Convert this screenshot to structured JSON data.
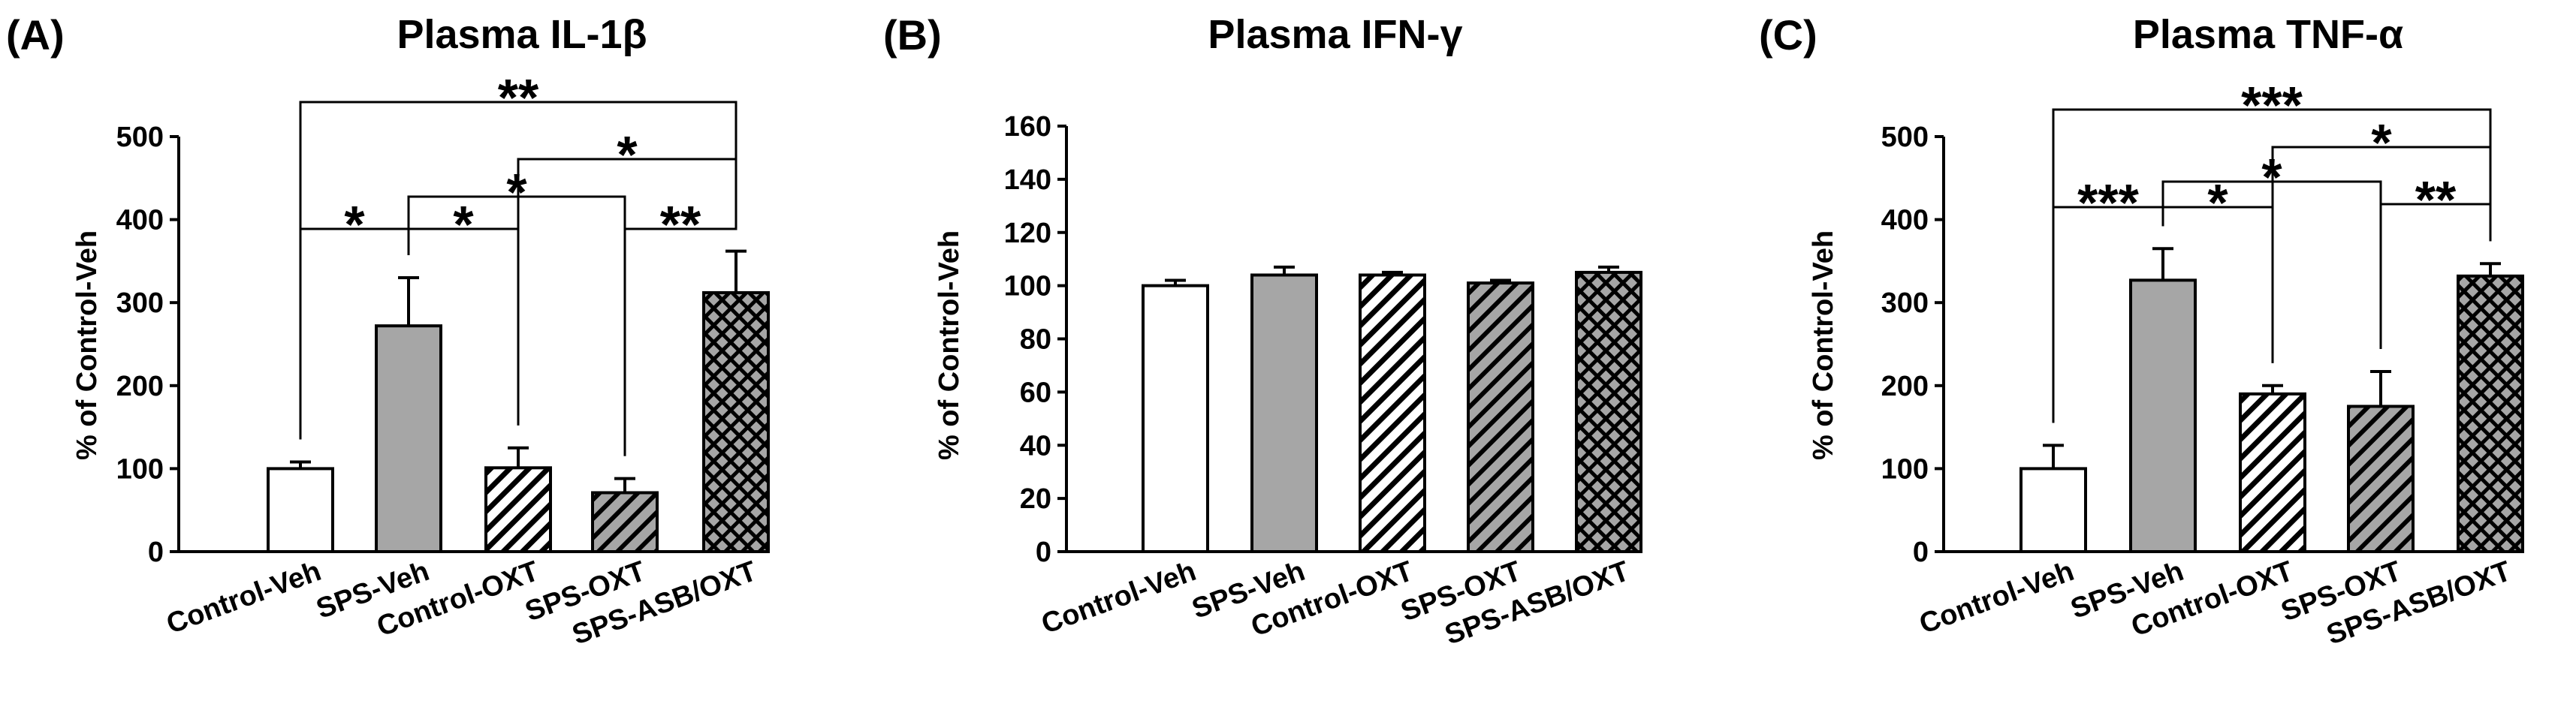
{
  "chart_data": [
    {
      "panel": "(A)",
      "type": "bar",
      "title": "Plasma IL-1β",
      "ylabel": "% of Control-Veh",
      "ylim": [
        0,
        500
      ],
      "yticks": [
        "0",
        "100",
        "200",
        "300",
        "400",
        "500"
      ],
      "categories": [
        "Control-Veh",
        "SPS-Veh",
        "Control-OXT",
        "SPS-OXT",
        "SPS-ASB/OXT"
      ],
      "values": [
        100,
        272,
        101,
        71,
        312
      ],
      "errors": [
        8,
        58,
        24,
        17,
        50
      ],
      "patterns": [
        "white",
        "gray",
        "hatch-white",
        "hatch-gray",
        "crosshatch"
      ],
      "significance": [
        {
          "from": 0,
          "to": 4,
          "label": "**"
        },
        {
          "from": 2,
          "to": 4,
          "label": "*"
        },
        {
          "from": 1,
          "to": 3,
          "label": "*"
        },
        {
          "from": 1,
          "to": 2,
          "label": "*"
        },
        {
          "from": 0,
          "to": 1,
          "label": "*"
        },
        {
          "from": 3,
          "to": 4,
          "label": "**"
        }
      ]
    },
    {
      "panel": "(B)",
      "type": "bar",
      "title": "Plasma IFN-γ",
      "ylabel": "% of Control-Veh",
      "ylim": [
        0,
        160
      ],
      "yticks": [
        "0",
        "20",
        "40",
        "60",
        "80",
        "100",
        "120",
        "140",
        "160"
      ],
      "categories": [
        "Control-Veh",
        "SPS-Veh",
        "Control-OXT",
        "SPS-OXT",
        "SPS-ASB/OXT"
      ],
      "values": [
        100,
        104,
        104,
        101,
        105
      ],
      "errors": [
        2,
        3,
        1,
        1,
        2
      ],
      "patterns": [
        "white",
        "gray",
        "hatch-white",
        "hatch-gray",
        "crosshatch"
      ],
      "significance": []
    },
    {
      "panel": "(C)",
      "type": "bar",
      "title": "Plasma TNF-α",
      "ylabel": "% of Control-Veh",
      "ylim": [
        0,
        500
      ],
      "yticks": [
        "0",
        "100",
        "200",
        "300",
        "400",
        "500"
      ],
      "categories": [
        "Control-Veh",
        "SPS-Veh",
        "Control-OXT",
        "SPS-OXT",
        "SPS-ASB/OXT"
      ],
      "values": [
        100,
        327,
        190,
        175,
        332
      ],
      "errors": [
        28,
        38,
        10,
        42,
        15
      ],
      "patterns": [
        "white",
        "gray",
        "hatch-white",
        "hatch-gray",
        "crosshatch"
      ],
      "significance": [
        {
          "from": 0,
          "to": 4,
          "label": "***"
        },
        {
          "from": 2,
          "to": 4,
          "label": "*"
        },
        {
          "from": 1,
          "to": 3,
          "label": "*"
        },
        {
          "from": 1,
          "to": 2,
          "label": "*"
        },
        {
          "from": 0,
          "to": 1,
          "label": "***"
        },
        {
          "from": 3,
          "to": 4,
          "label": "**"
        }
      ]
    }
  ],
  "colors": {
    "bar_gray": "#a6a6a6",
    "bar_white": "#ffffff",
    "stroke": "#000000"
  }
}
